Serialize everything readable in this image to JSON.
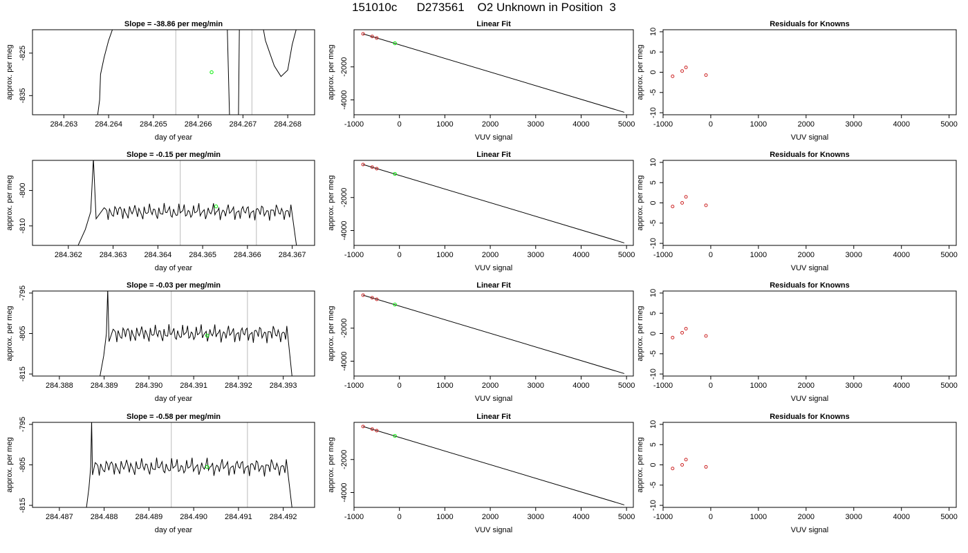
{
  "figure_title": "151010c      D273561    O2 Unknown in Position  3",
  "chart_data": [
    {
      "type": "line",
      "panel": "time-series",
      "row": 1,
      "title": "Slope =  -38.86  per meg/min",
      "xlabel": "day of year",
      "ylabel": "approx. per meg",
      "xlim": [
        284.2623,
        284.2686
      ],
      "ylim": [
        -839.5,
        -819.5
      ],
      "xticks": [
        284.263,
        284.264,
        284.265,
        284.266,
        284.267,
        284.268
      ],
      "xtick_labels": [
        "284.263",
        "284.264",
        "284.265",
        "284.266",
        "284.267",
        "284.268"
      ],
      "yticks": [
        -825,
        -835
      ],
      "ytick_labels": [
        "-825",
        "-835"
      ],
      "vlines": [
        284.2655,
        284.2672
      ],
      "marker": {
        "x": 284.2663,
        "y": -829.5,
        "color": "#00ee00"
      },
      "series_path": [
        [
          284.26375,
          -840
        ],
        [
          284.2638,
          -836
        ],
        [
          284.26382,
          -830
        ],
        [
          284.2639,
          -826
        ],
        [
          284.264,
          -822
        ],
        [
          284.2641,
          -819
        ],
        [
          284.26665,
          -819
        ],
        [
          284.2667,
          -840
        ],
        [
          284.2669,
          -840
        ],
        [
          284.26692,
          -819
        ],
        [
          284.26745,
          -819
        ],
        [
          284.2675,
          -822
        ],
        [
          284.2676,
          -825
        ],
        [
          284.2677,
          -828
        ],
        [
          284.26785,
          -830.5
        ],
        [
          284.268,
          -829
        ],
        [
          284.2681,
          -823
        ],
        [
          284.2682,
          -819
        ]
      ]
    },
    {
      "type": "line",
      "panel": "time-series",
      "row": 2,
      "title": "Slope =  -0.15  per meg/min",
      "xlabel": "day of year",
      "ylabel": "approx. per meg",
      "xlim": [
        284.3612,
        284.3675
      ],
      "ylim": [
        -815.5,
        -791.5
      ],
      "xticks": [
        284.362,
        284.363,
        284.364,
        284.365,
        284.366,
        284.367
      ],
      "xtick_labels": [
        "284.362",
        "284.363",
        "284.364",
        "284.365",
        "284.366",
        "284.367"
      ],
      "yticks": [
        -800,
        -810
      ],
      "ytick_labels": [
        "-800",
        "-810"
      ],
      "vlines": [
        284.3645,
        284.3662
      ],
      "marker": {
        "x": 284.3653,
        "y": -804.5,
        "color": "#00ee00"
      },
      "curve": {
        "start": 284.3622,
        "end": 284.3671,
        "plateau_start": 284.3628,
        "plateau": -806,
        "high": -791,
        "low": -816,
        "wiggle": 1.7
      }
    },
    {
      "type": "line",
      "panel": "time-series",
      "row": 3,
      "title": "Slope =  -0.03  per meg/min",
      "xlabel": "day of year",
      "ylabel": "approx. per meg",
      "xlim": [
        284.3874,
        284.3937
      ],
      "ylim": [
        -815.5,
        -794.5
      ],
      "xticks": [
        284.388,
        284.389,
        284.39,
        284.391,
        284.392,
        284.393
      ],
      "xtick_labels": [
        "284.388",
        "284.389",
        "284.390",
        "284.391",
        "284.392",
        "284.393"
      ],
      "yticks": [
        -795,
        -805,
        -815
      ],
      "ytick_labels": [
        "-795",
        "-805",
        "-815"
      ],
      "vlines": [
        284.3905,
        284.3922
      ],
      "marker": {
        "x": 284.3913,
        "y": -805.5,
        "color": "#00ee00"
      },
      "curve": {
        "start": 284.3889,
        "end": 284.3932,
        "plateau_start": 284.3892,
        "plateau": -805,
        "high": -794,
        "low": -816,
        "wiggle": 1.6
      }
    },
    {
      "type": "line",
      "panel": "time-series",
      "row": 4,
      "title": "Slope =  -0.58  per meg/min",
      "xlabel": "day of year",
      "ylabel": "approx. per meg",
      "xlim": [
        284.4864,
        284.4927
      ],
      "ylim": [
        -815.5,
        -794.5
      ],
      "xticks": [
        284.487,
        284.488,
        284.489,
        284.49,
        284.491,
        284.492
      ],
      "xtick_labels": [
        "284.487",
        "284.488",
        "284.489",
        "284.490",
        "284.491",
        "284.492"
      ],
      "yticks": [
        -795,
        -805,
        -815
      ],
      "ytick_labels": [
        "-795",
        "-805",
        "-815"
      ],
      "vlines": [
        284.4895,
        284.4912
      ],
      "marker": {
        "x": 284.4903,
        "y": -805.5,
        "color": "#00ee00"
      },
      "curve": {
        "start": 284.4876,
        "end": 284.4922,
        "plateau_start": 284.4878,
        "plateau": -805.5,
        "high": -794,
        "low": -816,
        "wiggle": 1.6
      }
    },
    {
      "type": "scatter",
      "panel": "linear-fit",
      "row": 1,
      "title": "Linear Fit",
      "xlabel": "VUV signal",
      "ylabel": "approx. per meg",
      "xlim": [
        -1000,
        5150
      ],
      "ylim": [
        -4900,
        250
      ],
      "xticks": [
        -1000,
        0,
        1000,
        2000,
        3000,
        4000,
        5000
      ],
      "xtick_labels": [
        "-1000",
        "0",
        "1000",
        "2000",
        "3000",
        "4000",
        "5000"
      ],
      "yticks": [
        -2000,
        -4000
      ],
      "ytick_labels": [
        "-2000",
        "-4000"
      ],
      "fit_line": [
        [
          -800,
          0
        ],
        [
          4950,
          -4750
        ]
      ],
      "knowns": [
        [
          -800,
          0
        ],
        [
          -600,
          -160
        ],
        [
          -500,
          -250
        ]
      ],
      "unknown": [
        [
          -100,
          -570
        ]
      ]
    },
    {
      "type": "scatter",
      "panel": "linear-fit",
      "row": 2,
      "title": "Linear Fit",
      "xlabel": "VUV signal",
      "ylabel": "approx. per meg",
      "xlim": [
        -1000,
        5150
      ],
      "ylim": [
        -4900,
        250
      ],
      "xticks": [
        -1000,
        0,
        1000,
        2000,
        3000,
        4000,
        5000
      ],
      "xtick_labels": [
        "-1000",
        "0",
        "1000",
        "2000",
        "3000",
        "4000",
        "5000"
      ],
      "yticks": [
        -2000,
        -4000
      ],
      "ytick_labels": [
        "-2000",
        "-4000"
      ],
      "fit_line": [
        [
          -800,
          0
        ],
        [
          4950,
          -4750
        ]
      ],
      "knowns": [
        [
          -800,
          0
        ],
        [
          -600,
          -160
        ],
        [
          -500,
          -250
        ]
      ],
      "unknown": [
        [
          -100,
          -570
        ]
      ]
    },
    {
      "type": "scatter",
      "panel": "linear-fit",
      "row": 3,
      "title": "Linear Fit",
      "xlabel": "VUV signal",
      "ylabel": "approx. per meg",
      "xlim": [
        -1000,
        5150
      ],
      "ylim": [
        -4900,
        250
      ],
      "xticks": [
        -1000,
        0,
        1000,
        2000,
        3000,
        4000,
        5000
      ],
      "xtick_labels": [
        "-1000",
        "0",
        "1000",
        "2000",
        "3000",
        "4000",
        "5000"
      ],
      "yticks": [
        -2000,
        -4000
      ],
      "ytick_labels": [
        "-2000",
        "-4000"
      ],
      "fit_line": [
        [
          -800,
          0
        ],
        [
          4950,
          -4750
        ]
      ],
      "knowns": [
        [
          -800,
          0
        ],
        [
          -600,
          -160
        ],
        [
          -500,
          -250
        ]
      ],
      "unknown": [
        [
          -100,
          -570
        ]
      ]
    },
    {
      "type": "scatter",
      "panel": "linear-fit",
      "row": 4,
      "title": "Linear Fit",
      "xlabel": "VUV signal",
      "ylabel": "approx. per meg",
      "xlim": [
        -1000,
        5150
      ],
      "ylim": [
        -4900,
        250
      ],
      "xticks": [
        -1000,
        0,
        1000,
        2000,
        3000,
        4000,
        5000
      ],
      "xtick_labels": [
        "-1000",
        "0",
        "1000",
        "2000",
        "3000",
        "4000",
        "5000"
      ],
      "yticks": [
        -2000,
        -4000
      ],
      "ytick_labels": [
        "-2000",
        "-4000"
      ],
      "fit_line": [
        [
          -800,
          0
        ],
        [
          4950,
          -4750
        ]
      ],
      "knowns": [
        [
          -800,
          0
        ],
        [
          -600,
          -160
        ],
        [
          -500,
          -250
        ]
      ],
      "unknown": [
        [
          -100,
          -570
        ]
      ]
    },
    {
      "type": "scatter",
      "panel": "residuals",
      "row": 1,
      "title": "Residuals for Knowns",
      "xlabel": "VUV signal",
      "ylabel": "approx. per meg",
      "xlim": [
        -1000,
        5150
      ],
      "ylim": [
        -10.5,
        10.5
      ],
      "xticks": [
        -1000,
        0,
        1000,
        2000,
        3000,
        4000,
        5000
      ],
      "xtick_labels": [
        "-1000",
        "0",
        "1000",
        "2000",
        "3000",
        "4000",
        "5000"
      ],
      "yticks": [
        10,
        5,
        0,
        -5,
        -10
      ],
      "ytick_labels": [
        "10",
        "5",
        "0",
        "-5",
        "-10"
      ],
      "points": [
        [
          -800,
          -1
        ],
        [
          -600,
          0.3
        ],
        [
          -520,
          1.2
        ],
        [
          -100,
          -0.7
        ]
      ]
    },
    {
      "type": "scatter",
      "panel": "residuals",
      "row": 2,
      "title": "Residuals for Knowns",
      "xlabel": "VUV signal",
      "ylabel": "approx. per meg",
      "xlim": [
        -1000,
        5150
      ],
      "ylim": [
        -10.5,
        10.5
      ],
      "xticks": [
        -1000,
        0,
        1000,
        2000,
        3000,
        4000,
        5000
      ],
      "xtick_labels": [
        "-1000",
        "0",
        "1000",
        "2000",
        "3000",
        "4000",
        "5000"
      ],
      "yticks": [
        10,
        5,
        0,
        -5,
        -10
      ],
      "ytick_labels": [
        "10",
        "5",
        "0",
        "-5",
        "-10"
      ],
      "points": [
        [
          -800,
          -0.9
        ],
        [
          -600,
          0
        ],
        [
          -520,
          1.5
        ],
        [
          -100,
          -0.6
        ]
      ]
    },
    {
      "type": "scatter",
      "panel": "residuals",
      "row": 3,
      "title": "Residuals for Knowns",
      "xlabel": "VUV signal",
      "ylabel": "approx. per meg",
      "xlim": [
        -1000,
        5150
      ],
      "ylim": [
        -10.5,
        10.5
      ],
      "xticks": [
        -1000,
        0,
        1000,
        2000,
        3000,
        4000,
        5000
      ],
      "xtick_labels": [
        "-1000",
        "0",
        "1000",
        "2000",
        "3000",
        "4000",
        "5000"
      ],
      "yticks": [
        10,
        5,
        0,
        -5,
        -10
      ],
      "ytick_labels": [
        "10",
        "5",
        "0",
        "-5",
        "-10"
      ],
      "points": [
        [
          -800,
          -1
        ],
        [
          -600,
          0.2
        ],
        [
          -520,
          1.2
        ],
        [
          -100,
          -0.6
        ]
      ]
    },
    {
      "type": "scatter",
      "panel": "residuals",
      "row": 4,
      "title": "Residuals for Knowns",
      "xlabel": "VUV signal",
      "ylabel": "approx. per meg",
      "xlim": [
        -1000,
        5150
      ],
      "ylim": [
        -10.5,
        10.5
      ],
      "xticks": [
        -1000,
        0,
        1000,
        2000,
        3000,
        4000,
        5000
      ],
      "xtick_labels": [
        "-1000",
        "0",
        "1000",
        "2000",
        "3000",
        "4000",
        "5000"
      ],
      "yticks": [
        10,
        5,
        0,
        -5,
        -10
      ],
      "ytick_labels": [
        "10",
        "5",
        "0",
        "-5",
        "-10"
      ],
      "points": [
        [
          -800,
          -0.9
        ],
        [
          -600,
          0
        ],
        [
          -520,
          1.3
        ],
        [
          -100,
          -0.5
        ]
      ]
    }
  ],
  "colors": {
    "known_points": "#cc2222",
    "unknown_point": "#00ee00",
    "vertical_lines": "#bbbbbb",
    "series_line": "#000000"
  }
}
